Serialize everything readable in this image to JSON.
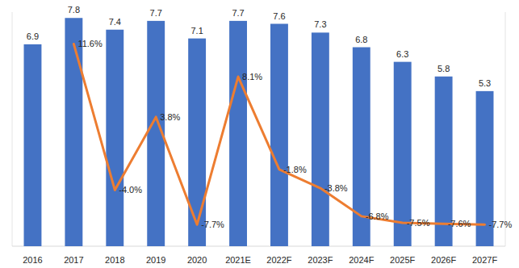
{
  "chart_data": {
    "type": "bar",
    "categories": [
      "2016",
      "2017",
      "2018",
      "2019",
      "2020",
      "2021E",
      "2022F",
      "2023F",
      "2024F",
      "2025F",
      "2026F",
      "2027F"
    ],
    "series": [
      {
        "type": "bar",
        "color": "#4472c4",
        "values": [
          6.9,
          7.8,
          7.4,
          7.7,
          7.1,
          7.7,
          7.6,
          7.3,
          6.8,
          6.3,
          5.8,
          5.3
        ]
      },
      {
        "type": "line",
        "axis": "y2",
        "color": "#ed7d31",
        "values": [
          null,
          11.6,
          -4.0,
          3.8,
          -7.7,
          8.1,
          -1.8,
          -3.8,
          -6.8,
          -7.5,
          -7.6,
          -7.7
        ],
        "value_labels": [
          null,
          "11.6%",
          "-4.0%",
          "3.8%",
          "-7.7%",
          "8.1%",
          "-1.8%",
          "-3.8%",
          "-6.8%",
          "-7.5%",
          "-7.6%",
          "-7.7%"
        ]
      }
    ],
    "ylim": [
      0,
      8
    ],
    "y2lim": [
      -10,
      15
    ],
    "data_labels": true,
    "tick_labels": "x",
    "grid": false
  }
}
